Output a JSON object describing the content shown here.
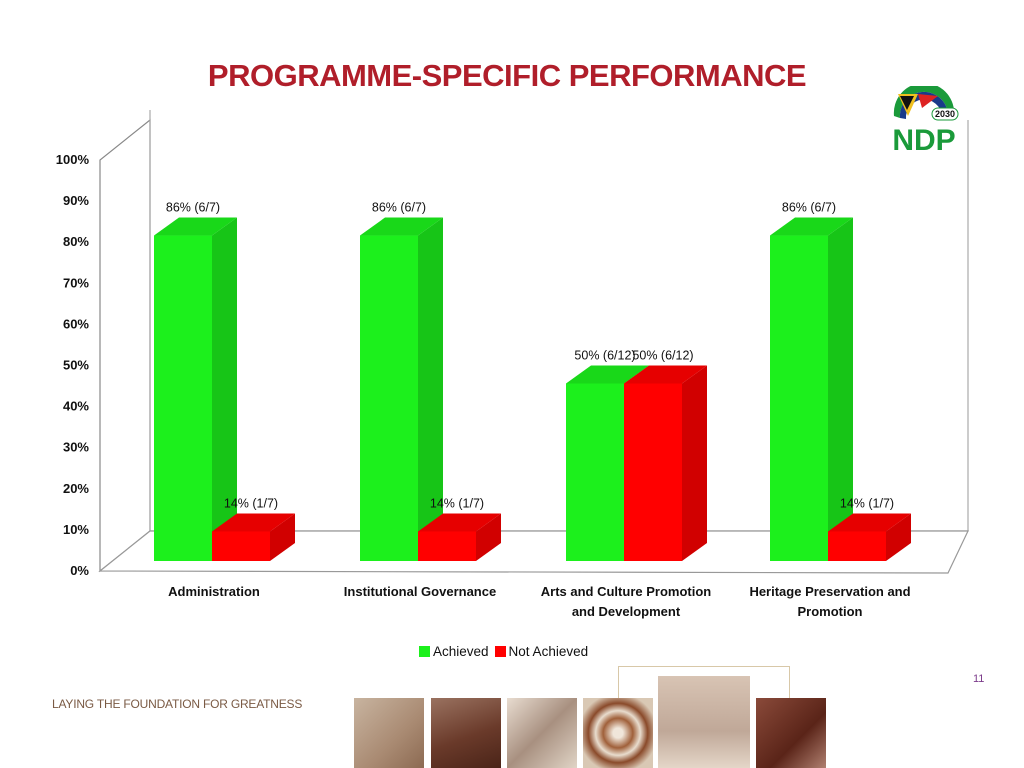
{
  "title": "PROGRAMME-SPECIFIC PERFORMANCE",
  "footer": {
    "tagline": "LAYING THE FOUNDATION FOR GREATNESS",
    "page_number": "11"
  },
  "logo": {
    "year": "2030",
    "text": "NDP"
  },
  "colors": {
    "achieved": "#1cf01c",
    "not_achieved": "#ff0000",
    "title": "#b01e2a"
  },
  "chart_data": {
    "type": "bar",
    "categories": [
      [
        "Administration"
      ],
      [
        "Institutional Governance"
      ],
      [
        "Arts and Culture Promotion",
        "and Development"
      ],
      [
        "Heritage Preservation and",
        "Promotion"
      ]
    ],
    "series": [
      {
        "name": "Achieved",
        "color": "#1cf01c",
        "values": [
          86,
          86,
          50,
          86
        ],
        "labels": [
          "86% (6/7)",
          "86% (6/7)",
          "50% (6/12)",
          "86% (6/7)"
        ]
      },
      {
        "name": "Not Achieved",
        "color": "#ff0000",
        "values": [
          14,
          14,
          50,
          14
        ],
        "labels": [
          "14% (1/7)",
          "14% (1/7)",
          "50% (6/12)",
          "14% (1/7)"
        ]
      }
    ],
    "ylim": [
      0,
      100
    ],
    "yticks": [
      "0%",
      "10%",
      "20%",
      "30%",
      "40%",
      "50%",
      "60%",
      "70%",
      "80%",
      "90%",
      "100%"
    ],
    "legend_position": "bottom",
    "chart_style": "3d-clustered-column"
  }
}
